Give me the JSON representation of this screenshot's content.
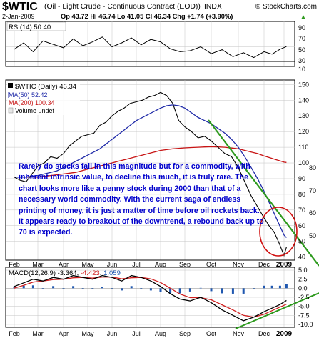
{
  "header": {
    "symbol": "$WTIC",
    "description": "(Oil - Light Crude - Continuous Contract (EOD))",
    "exchange": "INDX",
    "date": "2-Jan-2009",
    "quote": "Op 43.72  Hi 46.74  Lo 41.05  Cl 46.34  Chg +1.74 (+3.90%)",
    "watermark": "© StockCharts.com",
    "up_arrow": "▲"
  },
  "rsi_panel": {
    "legend": "RSI(14) 50.40",
    "ticks": [
      "90",
      "70",
      "50",
      "30",
      "10"
    ],
    "levels": [
      70,
      30
    ]
  },
  "price_panel": {
    "legend_main": "$WTIC (Daily) 46.34",
    "legend_ma50": "MA(50) 52.42",
    "legend_ma200": "MA(200) 100.34",
    "legend_volume": "Volume undef",
    "ticks": [
      "150",
      "140",
      "130",
      "120",
      "110",
      "100",
      "90",
      "80",
      "70",
      "60",
      "50",
      "40"
    ],
    "ticks_left": [
      "80",
      "70",
      "60",
      "50"
    ]
  },
  "macd_panel": {
    "legend_prefix": "MACD(12,26,9) -3.364, ",
    "legend_signal": "-4.423",
    "legend_sep": ", ",
    "legend_hist": "1.059",
    "ticks": [
      "5.0",
      "2.5",
      "0.0",
      "-2.5",
      "-5.0",
      "-7.5",
      "-10.0"
    ]
  },
  "months": [
    "Feb",
    "Mar",
    "Apr",
    "May",
    "Jun",
    "Jul",
    "Aug",
    "Sep",
    "Oct",
    "Nov",
    "Dec",
    "2009"
  ],
  "annotation": "Rarely do stocks fall in this magnitude but for a commodity, with inherent intrinsic value, to decline this much, it is truly rare. The chart looks more like a penny stock during 2000 than that of a necessary world commodity.  With the current saga of endless printing of money, it is just a matter of time before oil rockets back. It appears ready to breakout of the downtrend, a rebound back up to 70 is expected.",
  "colors": {
    "price": "#000000",
    "ma50": "#1f2aa8",
    "ma200": "#c81414",
    "trendline": "#2e9a1e",
    "circle": "#d01010",
    "annotation": "#0000cc",
    "macd_signal": "#d02020",
    "macd_hist": "#1f57b0",
    "grid": "#c4c4c4"
  },
  "chart_data": [
    {
      "type": "line",
      "title": "RSI(14) 50.40",
      "ylim": [
        10,
        90
      ],
      "x": [
        0.0,
        0.4,
        0.8,
        1.2,
        1.6,
        2.0,
        2.4,
        2.8,
        3.2,
        3.6,
        4.0,
        4.4,
        4.8,
        5.2,
        5.6,
        6.0,
        6.4,
        6.8,
        7.2,
        7.6,
        8.0,
        8.4,
        8.8,
        9.2,
        9.6,
        10.0,
        10.4,
        10.8,
        11.1
      ],
      "series": [
        {
          "name": "RSI(14)",
          "values": [
            45,
            58,
            40,
            62,
            55,
            48,
            66,
            52,
            60,
            70,
            50,
            58,
            68,
            54,
            65,
            60,
            46,
            40,
            42,
            50,
            36,
            44,
            30,
            38,
            28,
            40,
            35,
            45,
            50.4
          ]
        }
      ]
    },
    {
      "type": "line",
      "title": "$WTIC (Daily) 46.34",
      "ylim": [
        38,
        152
      ],
      "x": [
        0.0,
        0.25,
        0.5,
        0.75,
        1.0,
        1.25,
        1.5,
        1.75,
        2.0,
        2.25,
        2.5,
        2.75,
        3.0,
        3.25,
        3.5,
        3.75,
        4.0,
        4.25,
        4.5,
        4.75,
        5.0,
        5.25,
        5.5,
        5.75,
        6.0,
        6.25,
        6.5,
        6.75,
        7.0,
        7.25,
        7.5,
        7.75,
        8.0,
        8.25,
        8.5,
        8.75,
        9.0,
        9.25,
        9.5,
        9.75,
        10.0,
        10.25,
        10.5,
        10.75,
        11.0,
        11.1
      ],
      "series": [
        {
          "name": "$WTIC (Daily)",
          "values": [
            91,
            89,
            88,
            93,
            98,
            100,
            104,
            103,
            106,
            111,
            114,
            117,
            118,
            119,
            124,
            126,
            130,
            133,
            135,
            138,
            139,
            140,
            142,
            143,
            145,
            143,
            138,
            127,
            123,
            120,
            116,
            117,
            114,
            110,
            106,
            104,
            97,
            88,
            79,
            72,
            65,
            60,
            56,
            49,
            41,
            46.34
          ]
        },
        {
          "name": "MA(50)",
          "values": [
            91,
            91,
            91,
            91.5,
            92,
            93,
            94,
            95,
            97,
            99,
            101,
            103,
            105,
            107,
            109,
            112,
            115,
            118,
            121,
            124,
            127,
            129,
            131,
            133,
            135,
            136.5,
            137,
            136.5,
            135,
            132,
            129,
            127,
            125,
            122,
            119,
            115,
            110,
            104,
            97,
            90,
            82,
            75,
            68,
            61,
            54,
            52.42
          ]
        },
        {
          "name": "MA(200)",
          "values": [
            91,
            91,
            91,
            91,
            91,
            91.5,
            92,
            92.5,
            93,
            93.5,
            94,
            95,
            96,
            97,
            98,
            99,
            100,
            101,
            102,
            103,
            104,
            105,
            106,
            107,
            108,
            108.5,
            109,
            109.3,
            109.6,
            109.8,
            110,
            110.2,
            110.3,
            110.2,
            110,
            109.5,
            109,
            108,
            107,
            106,
            104.5,
            103.5,
            102.5,
            101.5,
            100.5,
            100.34
          ]
        }
      ]
    },
    {
      "type": "line",
      "title": "MACD(12,26,9) -3.364, -4.423, 1.059",
      "ylim": [
        -10.8,
        5.8
      ],
      "x": [
        0.0,
        0.4,
        0.8,
        1.2,
        1.6,
        2.0,
        2.4,
        2.8,
        3.2,
        3.6,
        4.0,
        4.4,
        4.8,
        5.2,
        5.6,
        6.0,
        6.4,
        6.8,
        7.2,
        7.6,
        8.0,
        8.4,
        8.8,
        9.2,
        9.6,
        10.0,
        10.4,
        10.8,
        11.1
      ],
      "series": [
        {
          "name": "MACD",
          "values": [
            0.5,
            1.5,
            2.5,
            2.0,
            3.0,
            2.5,
            3.5,
            3.0,
            2.5,
            3.5,
            3.0,
            2.0,
            3.5,
            3.0,
            2.0,
            0.5,
            -1.5,
            -3.0,
            -3.5,
            -2.5,
            -4.0,
            -6.0,
            -7.5,
            -9.0,
            -8.0,
            -6.5,
            -5.5,
            -4.5,
            -3.364
          ]
        },
        {
          "name": "Signal",
          "values": [
            0.0,
            0.8,
            1.7,
            2.0,
            2.4,
            2.5,
            2.9,
            3.0,
            2.8,
            3.1,
            3.1,
            2.6,
            2.9,
            3.0,
            2.6,
            1.6,
            0.0,
            -1.6,
            -2.6,
            -2.6,
            -3.2,
            -4.6,
            -6.0,
            -7.5,
            -8.0,
            -7.2,
            -6.2,
            -5.2,
            -4.423
          ]
        },
        {
          "name": "Histogram",
          "values": [
            0.5,
            0.7,
            0.8,
            0.0,
            0.6,
            0.0,
            0.6,
            0.0,
            -0.3,
            0.4,
            -0.1,
            -0.6,
            0.6,
            0.0,
            -0.6,
            -1.1,
            -1.5,
            -1.4,
            -0.9,
            0.1,
            -0.8,
            -1.4,
            -1.5,
            -1.5,
            0.0,
            0.7,
            0.7,
            0.7,
            1.059
          ]
        }
      ]
    }
  ]
}
